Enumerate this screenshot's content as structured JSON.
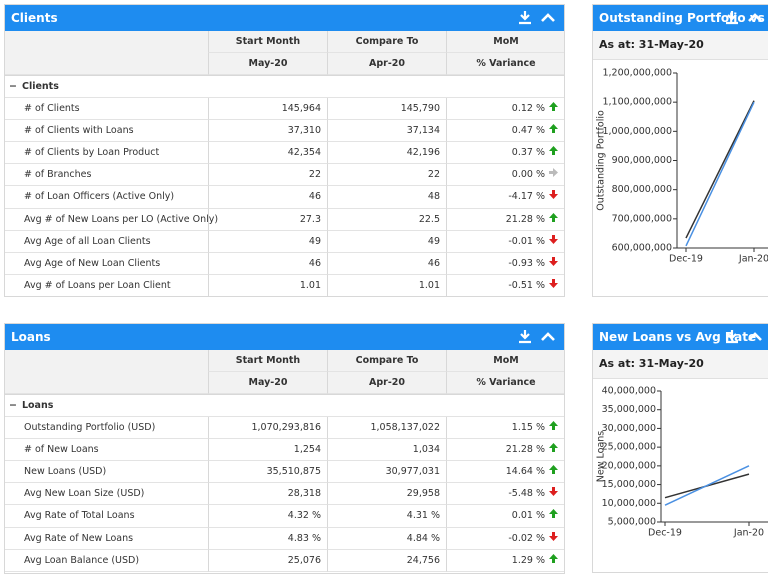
{
  "clients": {
    "title": "Clients",
    "head": [
      [
        "Start Month",
        "May-20"
      ],
      [
        "Compare To",
        "Apr-20"
      ],
      [
        "MoM",
        "% Variance"
      ]
    ],
    "section": "Clients",
    "rows": [
      {
        "label": "# of Clients",
        "start": "145,964",
        "compare": "145,790",
        "variance": "0.12 %",
        "trend": "up"
      },
      {
        "label": "# of Clients with Loans",
        "start": "37,310",
        "compare": "37,134",
        "variance": "0.47 %",
        "trend": "up"
      },
      {
        "label": "# of Clients by Loan Product",
        "start": "42,354",
        "compare": "42,196",
        "variance": "0.37 %",
        "trend": "up"
      },
      {
        "label": "# of Branches",
        "start": "22",
        "compare": "22",
        "variance": "0.00 %",
        "trend": "flat"
      },
      {
        "label": "# of Loan Officers (Active Only)",
        "start": "46",
        "compare": "48",
        "variance": "-4.17 %",
        "trend": "down"
      },
      {
        "label": "Avg # of New Loans per LO (Active Only)",
        "start": "27.3",
        "compare": "22.5",
        "variance": "21.28 %",
        "trend": "up"
      },
      {
        "label": "Avg Age of all Loan Clients",
        "start": "49",
        "compare": "49",
        "variance": "-0.01 %",
        "trend": "down"
      },
      {
        "label": "Avg Age of New Loan Clients",
        "start": "46",
        "compare": "46",
        "variance": "-0.93 %",
        "trend": "down"
      },
      {
        "label": "Avg # of Loans per Loan Client",
        "start": "1.01",
        "compare": "1.01",
        "variance": "-0.51 %",
        "trend": "down"
      }
    ]
  },
  "loans": {
    "title": "Loans",
    "head": [
      [
        "Start Month",
        "May-20"
      ],
      [
        "Compare To",
        "Apr-20"
      ],
      [
        "MoM",
        "% Variance"
      ]
    ],
    "section": "Loans",
    "rows": [
      {
        "label": "Outstanding Portfolio (USD)",
        "start": "1,070,293,816",
        "compare": "1,058,137,022",
        "variance": "1.15 %",
        "trend": "up"
      },
      {
        "label": "# of New Loans",
        "start": "1,254",
        "compare": "1,034",
        "variance": "21.28 %",
        "trend": "up"
      },
      {
        "label": "New Loans (USD)",
        "start": "35,510,875",
        "compare": "30,977,031",
        "variance": "14.64 %",
        "trend": "up"
      },
      {
        "label": "Avg New Loan Size (USD)",
        "start": "28,318",
        "compare": "29,958",
        "variance": "-5.48 %",
        "trend": "down"
      },
      {
        "label": "Avg Rate of Total Loans",
        "start": "4.32 %",
        "compare": "4.31 %",
        "variance": "0.01 %",
        "trend": "up"
      },
      {
        "label": "Avg Rate of New Loans",
        "start": "4.83 %",
        "compare": "4.84 %",
        "variance": "-0.02 %",
        "trend": "down"
      },
      {
        "label": "Avg Loan Balance (USD)",
        "start": "25,076",
        "compare": "24,756",
        "variance": "1.29 %",
        "trend": "up"
      }
    ]
  },
  "portfolio_chart": {
    "title": "Outstanding Portfolio vs Avg Rate",
    "as_at": "As at: 31-May-20",
    "chart_data": {
      "type": "line",
      "y_label": "Outstanding Portfolio",
      "categories": [
        "Dec-19",
        "Jan-20"
      ],
      "series": [
        {
          "color": "#333333",
          "values": [
            634000000,
            1105000000
          ]
        },
        {
          "color": "#4a90e2",
          "values": [
            607000000,
            1100000000
          ]
        }
      ],
      "ylim": [
        600000000,
        1200000000
      ],
      "yticks": [
        {
          "value": 600000000,
          "label": "600,000,000"
        },
        {
          "value": 700000000,
          "label": "700,000,000"
        },
        {
          "value": 800000000,
          "label": "800,000,000"
        },
        {
          "value": 900000000,
          "label": "900,000,000"
        },
        {
          "value": 1000000000,
          "label": "1,000,000,000"
        },
        {
          "value": 1100000000,
          "label": "1,100,000,000"
        },
        {
          "value": 1200000000,
          "label": "1,200,000,000"
        }
      ]
    }
  },
  "new_loans_chart": {
    "title": "New Loans vs Avg Rate",
    "as_at": "As at: 31-May-20",
    "chart_data": {
      "type": "line",
      "y_label": "New Loans",
      "categories": [
        "Dec-19",
        "Jan-20"
      ],
      "series": [
        {
          "color": "#333333",
          "values": [
            11500000,
            17800000
          ]
        },
        {
          "color": "#4a90e2",
          "values": [
            9500000,
            20000000
          ]
        }
      ],
      "ylim": [
        5000000,
        40000000
      ],
      "yticks": [
        {
          "value": 5000000,
          "label": "5,000,000"
        },
        {
          "value": 10000000,
          "label": "10,000,000"
        },
        {
          "value": 15000000,
          "label": "15,000,000"
        },
        {
          "value": 20000000,
          "label": "20,000,000"
        },
        {
          "value": 25000000,
          "label": "25,000,000"
        },
        {
          "value": 30000000,
          "label": "30,000,000"
        },
        {
          "value": 35000000,
          "label": "35,000,000"
        },
        {
          "value": 40000000,
          "label": "40,000,000"
        }
      ]
    }
  }
}
